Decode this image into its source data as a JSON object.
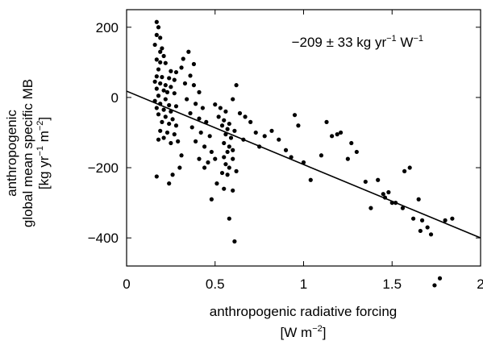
{
  "chart_data": {
    "type": "scatter",
    "title": "",
    "annotation": {
      "value": "−209 ± 33 kg yr",
      "exp1": "−1",
      "unit2": " W",
      "exp2": "−1"
    },
    "xlabel": {
      "line1": "anthropogenic radiative forcing",
      "line2_pre": "[W m",
      "line2_exp": "−2",
      "line2_post": "]"
    },
    "ylabel": {
      "line1": "anthropogenic",
      "line2": "global mean specific MB",
      "line3_pre": "[kg yr",
      "line3_exp1": "−1",
      "line3_mid": " m",
      "line3_exp2": "−2",
      "line3_post": "]"
    },
    "xlim": [
      0,
      2
    ],
    "ylim": [
      -480,
      250
    ],
    "x_ticks": [
      {
        "value": 0,
        "label": "0"
      },
      {
        "value": 0.5,
        "label": "0.5"
      },
      {
        "value": 1,
        "label": "1"
      },
      {
        "value": 1.5,
        "label": "1.5"
      },
      {
        "value": 2,
        "label": "2"
      }
    ],
    "y_ticks": [
      {
        "value": 200,
        "label": "200"
      },
      {
        "value": 0,
        "label": "0"
      },
      {
        "value": -200,
        "label": "−200"
      },
      {
        "value": -400,
        "label": "−400"
      }
    ],
    "grid": false,
    "fit_line": {
      "slope": -209,
      "intercept": 18
    },
    "colors": {
      "points": "#000000",
      "line": "#000000",
      "axes": "#000000"
    },
    "points": [
      [
        0.17,
        215
      ],
      [
        0.18,
        200
      ],
      [
        0.17,
        178
      ],
      [
        0.19,
        170
      ],
      [
        0.16,
        150
      ],
      [
        0.2,
        140
      ],
      [
        0.19,
        130
      ],
      [
        0.21,
        118
      ],
      [
        0.17,
        108
      ],
      [
        0.19,
        100
      ],
      [
        0.22,
        98
      ],
      [
        0.18,
        80
      ],
      [
        0.25,
        75
      ],
      [
        0.28,
        72
      ],
      [
        0.17,
        60
      ],
      [
        0.2,
        58
      ],
      [
        0.24,
        55
      ],
      [
        0.27,
        50
      ],
      [
        0.16,
        45
      ],
      [
        0.19,
        40
      ],
      [
        0.22,
        35
      ],
      [
        0.25,
        30
      ],
      [
        0.17,
        25
      ],
      [
        0.21,
        20
      ],
      [
        0.23,
        15
      ],
      [
        0.27,
        12
      ],
      [
        0.18,
        5
      ],
      [
        0.22,
        -5
      ],
      [
        0.16,
        -10
      ],
      [
        0.19,
        -18
      ],
      [
        0.24,
        -22
      ],
      [
        0.28,
        -25
      ],
      [
        0.17,
        -30
      ],
      [
        0.21,
        -35
      ],
      [
        0.25,
        -40
      ],
      [
        0.18,
        -48
      ],
      [
        0.22,
        -55
      ],
      [
        0.26,
        -62
      ],
      [
        0.2,
        -70
      ],
      [
        0.24,
        -75
      ],
      [
        0.28,
        -80
      ],
      [
        0.19,
        -95
      ],
      [
        0.23,
        -100
      ],
      [
        0.27,
        -105
      ],
      [
        0.21,
        -115
      ],
      [
        0.18,
        -120
      ],
      [
        0.25,
        -130
      ],
      [
        0.29,
        -125
      ],
      [
        0.17,
        -225
      ],
      [
        0.24,
        -245
      ],
      [
        0.26,
        -220
      ],
      [
        0.3,
        -200
      ],
      [
        0.31,
        -165
      ],
      [
        0.35,
        130
      ],
      [
        0.32,
        110
      ],
      [
        0.38,
        95
      ],
      [
        0.31,
        85
      ],
      [
        0.36,
        62
      ],
      [
        0.33,
        40
      ],
      [
        0.38,
        35
      ],
      [
        0.41,
        15
      ],
      [
        0.34,
        -5
      ],
      [
        0.39,
        -18
      ],
      [
        0.43,
        -30
      ],
      [
        0.36,
        -45
      ],
      [
        0.41,
        -60
      ],
      [
        0.45,
        -70
      ],
      [
        0.37,
        -85
      ],
      [
        0.42,
        -100
      ],
      [
        0.47,
        -110
      ],
      [
        0.39,
        -125
      ],
      [
        0.44,
        -140
      ],
      [
        0.48,
        -155
      ],
      [
        0.41,
        -175
      ],
      [
        0.46,
        -185
      ],
      [
        0.5,
        -175
      ],
      [
        0.44,
        -200
      ],
      [
        0.5,
        -20
      ],
      [
        0.53,
        -30
      ],
      [
        0.56,
        -40
      ],
      [
        0.52,
        -55
      ],
      [
        0.55,
        -65
      ],
      [
        0.58,
        -75
      ],
      [
        0.54,
        -80
      ],
      [
        0.57,
        -90
      ],
      [
        0.61,
        -95
      ],
      [
        0.56,
        -105
      ],
      [
        0.59,
        -115
      ],
      [
        0.55,
        -130
      ],
      [
        0.58,
        -140
      ],
      [
        0.6,
        -150
      ],
      [
        0.57,
        -155
      ],
      [
        0.55,
        -170
      ],
      [
        0.6,
        -175
      ],
      [
        0.56,
        -190
      ],
      [
        0.58,
        -200
      ],
      [
        0.62,
        -210
      ],
      [
        0.54,
        -215
      ],
      [
        0.57,
        -220
      ],
      [
        0.51,
        -245
      ],
      [
        0.55,
        -260
      ],
      [
        0.6,
        -265
      ],
      [
        0.48,
        -290
      ],
      [
        0.58,
        -345
      ],
      [
        0.61,
        -410
      ],
      [
        0.62,
        35
      ],
      [
        0.6,
        -5
      ],
      [
        0.64,
        -45
      ],
      [
        0.67,
        -55
      ],
      [
        0.7,
        -70
      ],
      [
        0.73,
        -100
      ],
      [
        0.66,
        -120
      ],
      [
        0.75,
        -140
      ],
      [
        0.78,
        -110
      ],
      [
        0.82,
        -95
      ],
      [
        0.86,
        -120
      ],
      [
        0.9,
        -150
      ],
      [
        0.93,
        -170
      ],
      [
        0.95,
        -50
      ],
      [
        0.97,
        -80
      ],
      [
        1.0,
        -185
      ],
      [
        1.04,
        -235
      ],
      [
        1.1,
        -165
      ],
      [
        1.13,
        -70
      ],
      [
        1.16,
        -110
      ],
      [
        1.19,
        -105
      ],
      [
        1.21,
        -100
      ],
      [
        1.25,
        -175
      ],
      [
        1.27,
        -130
      ],
      [
        1.3,
        -155
      ],
      [
        1.35,
        -240
      ],
      [
        1.38,
        -315
      ],
      [
        1.42,
        -235
      ],
      [
        1.46,
        -285
      ],
      [
        1.48,
        -270
      ],
      [
        1.5,
        -300
      ],
      [
        1.52,
        -300
      ],
      [
        1.57,
        -210
      ],
      [
        1.6,
        -200
      ],
      [
        1.62,
        -345
      ],
      [
        1.65,
        -290
      ],
      [
        1.67,
        -350
      ],
      [
        1.7,
        -370
      ],
      [
        1.72,
        -390
      ],
      [
        1.74,
        -535
      ],
      [
        1.77,
        -515
      ],
      [
        1.8,
        -350
      ],
      [
        1.84,
        -345
      ],
      [
        1.66,
        -380
      ],
      [
        1.56,
        -315
      ],
      [
        1.45,
        -275
      ]
    ]
  }
}
